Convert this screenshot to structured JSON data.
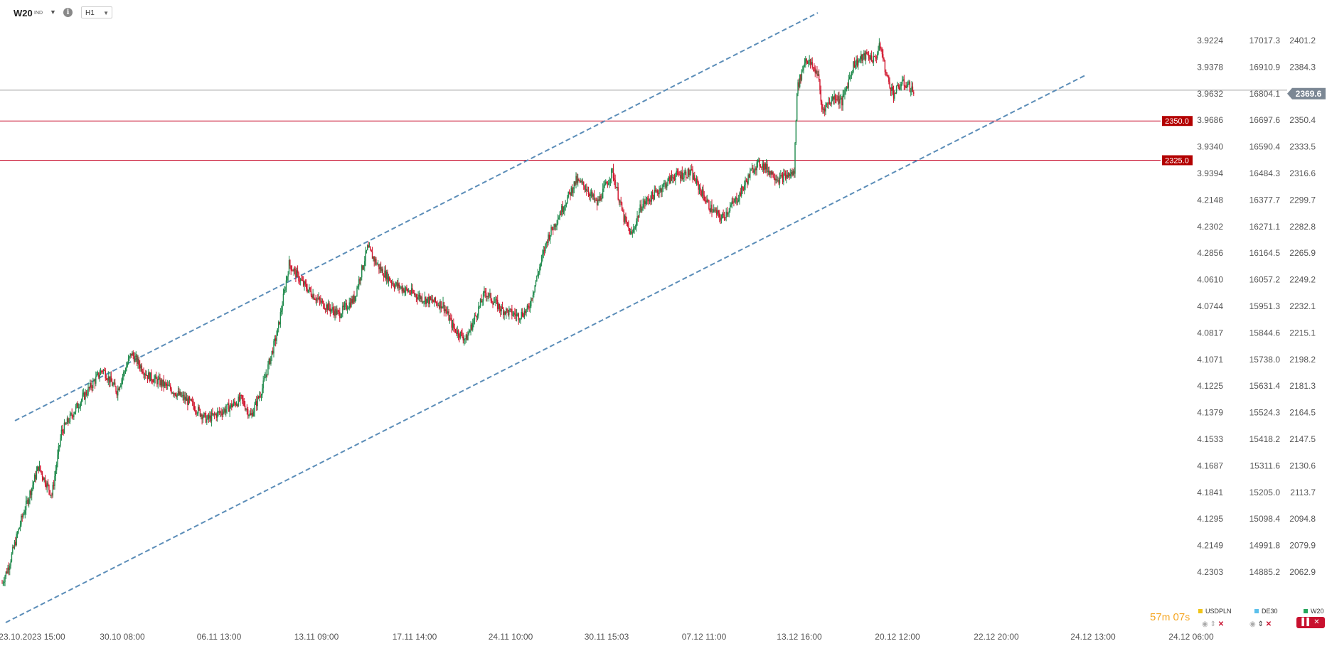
{
  "toolbar": {
    "symbol": "W20",
    "symbol_sub": "IND",
    "timeframe": "H1",
    "info_glyph": "i",
    "caret_glyph": "▼"
  },
  "chart_data": {
    "type": "candlestick",
    "symbol": "W20",
    "timeframe": "H1",
    "current_price": 2369.6,
    "yrange": [
      2050,
      2410
    ],
    "price_axis": [
      "2401.2",
      "2384.3",
      "2369.6",
      "2350.4",
      "2333.5",
      "2316.6",
      "2299.7",
      "2282.8",
      "2265.9",
      "2249.2",
      "2232.1",
      "2215.1",
      "2198.2",
      "2181.3",
      "2164.5",
      "2147.5",
      "2130.6",
      "2113.7",
      "2094.8",
      "2079.9",
      "2062.9"
    ],
    "axis_col1": [
      "3.9224",
      "3.9378",
      "3.9632",
      "3.9686",
      "3.9340",
      "3.9394",
      "4.2148",
      "4.2302",
      "4.2856",
      "4.0610",
      "4.0744",
      "4.0817",
      "4.1071",
      "4.1225",
      "4.1379",
      "4.1533",
      "4.1687",
      "4.1841",
      "4.1295",
      "4.2149",
      "4.2303"
    ],
    "axis_col2": [
      "17017.3",
      "16910.9",
      "16804.1",
      "16697.6",
      "16590.4",
      "16484.3",
      "16377.7",
      "16271.1",
      "16164.5",
      "16057.2",
      "15951.3",
      "15844.6",
      "15738.0",
      "15631.4",
      "15524.3",
      "15418.2",
      "15311.6",
      "15205.0",
      "15098.4",
      "14991.8",
      "14885.2"
    ],
    "time_labels": [
      "23.10.2023  15:00",
      "30.10  08:00",
      "06.11  13:00",
      "13.11  09:00",
      "17.11  14:00",
      "24.11  10:00",
      "30.11  15:03",
      "07.12  11:00",
      "13.12  16:00",
      "20.12  12:00",
      "22.12  20:00",
      "24.12  13:00",
      "24.12  06:00"
    ],
    "levels": [
      {
        "label": "2350.0",
        "value": 2350.0,
        "color": "#c8102e"
      },
      {
        "label": "2325.0",
        "value": 2325.0,
        "color": "#c8102e"
      }
    ],
    "channel": {
      "color": "#5b8db8",
      "style": "dashed"
    },
    "keypoints": [
      [
        0,
        2056
      ],
      [
        7,
        2067
      ],
      [
        20,
        2096
      ],
      [
        38,
        2130
      ],
      [
        52,
        2112
      ],
      [
        62,
        2152
      ],
      [
        80,
        2170
      ],
      [
        105,
        2192
      ],
      [
        120,
        2178
      ],
      [
        135,
        2202
      ],
      [
        152,
        2188
      ],
      [
        170,
        2182
      ],
      [
        198,
        2170
      ],
      [
        214,
        2160
      ],
      [
        235,
        2167
      ],
      [
        250,
        2173
      ],
      [
        260,
        2162
      ],
      [
        272,
        2180
      ],
      [
        288,
        2216
      ],
      [
        300,
        2259
      ],
      [
        315,
        2246
      ],
      [
        332,
        2235
      ],
      [
        352,
        2227
      ],
      [
        368,
        2237
      ],
      [
        382,
        2269
      ],
      [
        395,
        2256
      ],
      [
        410,
        2246
      ],
      [
        440,
        2237
      ],
      [
        461,
        2233
      ],
      [
        472,
        2218
      ],
      [
        485,
        2211
      ],
      [
        505,
        2241
      ],
      [
        522,
        2230
      ],
      [
        540,
        2226
      ],
      [
        550,
        2230
      ],
      [
        570,
        2275
      ],
      [
        600,
        2312
      ],
      [
        610,
        2308
      ],
      [
        622,
        2297
      ],
      [
        638,
        2318
      ],
      [
        650,
        2288
      ],
      [
        658,
        2277
      ],
      [
        668,
        2296
      ],
      [
        685,
        2305
      ],
      [
        702,
        2315
      ],
      [
        720,
        2317
      ],
      [
        740,
        2295
      ],
      [
        752,
        2288
      ],
      [
        770,
        2302
      ],
      [
        786,
        2321
      ],
      [
        793,
        2323
      ],
      [
        812,
        2313
      ],
      [
        828,
        2317
      ],
      [
        831,
        2370
      ],
      [
        840,
        2390
      ],
      [
        853,
        2380
      ],
      [
        857,
        2357
      ],
      [
        871,
        2366
      ],
      [
        878,
        2362
      ],
      [
        890,
        2386
      ],
      [
        904,
        2392
      ],
      [
        912,
        2389
      ],
      [
        918,
        2398
      ],
      [
        925,
        2378
      ],
      [
        932,
        2367
      ],
      [
        940,
        2374
      ],
      [
        947,
        2373
      ],
      [
        954,
        2368
      ]
    ]
  },
  "footer": {
    "timer_min": "57",
    "timer_min_unit": "m",
    "timer_sec": "07",
    "timer_sec_unit": "s",
    "legend": [
      {
        "name": "USDPLN",
        "color": "#f0c419"
      },
      {
        "name": "DE30",
        "color": "#5bc0eb"
      },
      {
        "name": "W20",
        "color": "#26a65b"
      }
    ]
  }
}
